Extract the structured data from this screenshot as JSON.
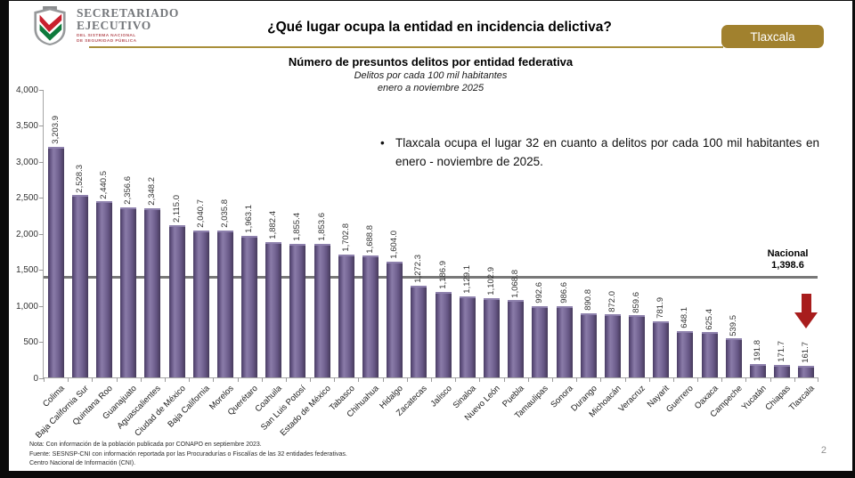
{
  "header": {
    "logo": {
      "title_line1": "SECRETARIADO",
      "title_line2": "EJECUTIVO",
      "subtitle_line1": "DEL SISTEMA NACIONAL",
      "subtitle_line2": "DE SEGURIDAD PÚBLICA"
    },
    "title": "¿Qué lugar ocupa la entidad en incidencia delictiva?",
    "state_badge_label": "Tlaxcala",
    "accent_gold": "#a1812e"
  },
  "bullet_note": {
    "marker": "•",
    "text": "Tlaxcala ocupa el lugar 32 en cuanto a delitos por cada 100 mil habitantes en enero - noviembre de 2025."
  },
  "chart_data": {
    "type": "bar",
    "title": "Número de presuntos delitos por entidad federativa",
    "subtitle": "Delitos por cada 100 mil habitantes",
    "period": "enero a noviembre 2025",
    "ylim": [
      0,
      4000
    ],
    "ytick_labels": [
      "4,000",
      "3,500",
      "3,000",
      "2,500",
      "2,000",
      "1,500",
      "1,000",
      "500",
      "0"
    ],
    "grid": false,
    "legend_position": "none",
    "bar_color": "#6a5a8e",
    "categories": [
      "Colima",
      "Baja California Sur",
      "Quintana Roo",
      "Guanajuato",
      "Aguascalientes",
      "Ciudad de México",
      "Baja California",
      "Morelos",
      "Querétaro",
      "Coahuila",
      "San Luis Potosí",
      "Estado de México",
      "Tabasco",
      "Chihuahua",
      "Hidalgo",
      "Zacatecas",
      "Jalisco",
      "Sinaloa",
      "Nuevo León",
      "Puebla",
      "Tamaulipas",
      "Sonora",
      "Durango",
      "Michoacán",
      "Veracruz",
      "Nayarit",
      "Guerrero",
      "Oaxaca",
      "Campeche",
      "Yucatán",
      "Chiapas",
      "Tlaxcala"
    ],
    "values": [
      3203.9,
      2528.3,
      2440.5,
      2356.6,
      2348.2,
      2115.0,
      2040.7,
      2035.8,
      1963.1,
      1882.4,
      1855.4,
      1853.6,
      1702.8,
      1688.8,
      1604.0,
      1272.3,
      1186.9,
      1129.1,
      1102.9,
      1068.8,
      992.6,
      986.6,
      890.8,
      872.0,
      859.6,
      781.9,
      648.1,
      625.4,
      539.5,
      191.8,
      171.7,
      161.7
    ],
    "value_labels": [
      "3,203.9",
      "2,528.3",
      "2,440.5",
      "2,356.6",
      "2,348.2",
      "2,115.0",
      "2,040.7",
      "2,035.8",
      "1,963.1",
      "1,882.4",
      "1,855.4",
      "1,853.6",
      "1,702.8",
      "1,688.8",
      "1,604.0",
      "1,272.3",
      "1,186.9",
      "1,129.1",
      "1,102.9",
      "1,068.8",
      "992.6",
      "986.6",
      "890.8",
      "872.0",
      "859.6",
      "781.9",
      "648.1",
      "625.4",
      "539.5",
      "191.8",
      "171.7",
      "161.7"
    ],
    "reference_line": {
      "name": "Nacional",
      "value": 1398.6,
      "value_label": "1,398.6",
      "color": "#787878"
    },
    "highlight": {
      "category": "Tlaxcala",
      "marker": "red-arrow-down",
      "color": "#a81d1d"
    }
  },
  "footer": {
    "notes": [
      "Nota: Con información de la población publicada por CONAPO en septiembre 2023.",
      "Fuente: SESNSP-CNI con información reportada por las Procuradurías o Fiscalías de las 32 entidades federativas.",
      "Centro Nacional de Información (CNI)."
    ],
    "page_number": "2"
  }
}
